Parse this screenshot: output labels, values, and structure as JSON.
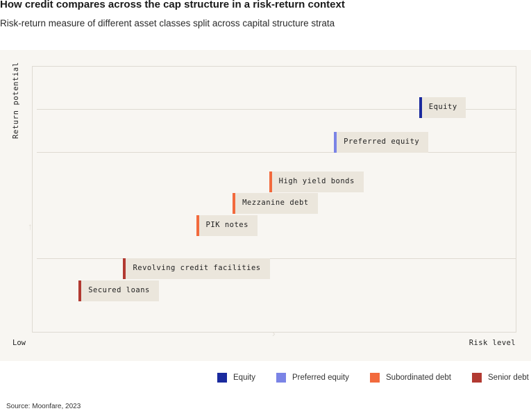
{
  "header": {
    "title": "How credit compares across the cap structure in a risk-return context",
    "subtitle": "Risk-return measure of different asset classes split across capital structure strata"
  },
  "chart_data": {
    "type": "scatter",
    "title": "How credit compares across the cap structure in a risk-return context",
    "subtitle": "Risk-return measure of different asset classes split across capital structure strata",
    "ylabel": "Return potential",
    "xlabel_low": "Low",
    "xlabel_high": "Risk level",
    "xlim": [
      0,
      100
    ],
    "ylim": [
      0,
      100
    ],
    "grid": false,
    "legend_position": "bottom-right",
    "series": [
      {
        "name": "Equity",
        "color": "#1a2a9e",
        "points": [
          {
            "label": "Equity",
            "x": 89,
            "y": 92
          }
        ]
      },
      {
        "name": "Preferred equity",
        "color": "#7b84e6",
        "points": [
          {
            "label": "Preferred equity",
            "x": 68,
            "y": 76
          }
        ]
      },
      {
        "name": "Subordinated debt",
        "color": "#f26a3d",
        "points": [
          {
            "label": "High yield bonds",
            "x": 52,
            "y": 58
          },
          {
            "label": "Mezzanine debt",
            "x": 43,
            "y": 48
          },
          {
            "label": "PIK notes",
            "x": 34,
            "y": 38
          }
        ]
      },
      {
        "name": "Senior debt",
        "color": "#b23a32",
        "points": [
          {
            "label": "Revolving credit facilities",
            "x": 16,
            "y": 18
          },
          {
            "label": "Secured loans",
            "x": 5,
            "y": 8
          }
        ]
      }
    ]
  },
  "footer": {
    "source": "Source: Moonfare, 2023"
  }
}
